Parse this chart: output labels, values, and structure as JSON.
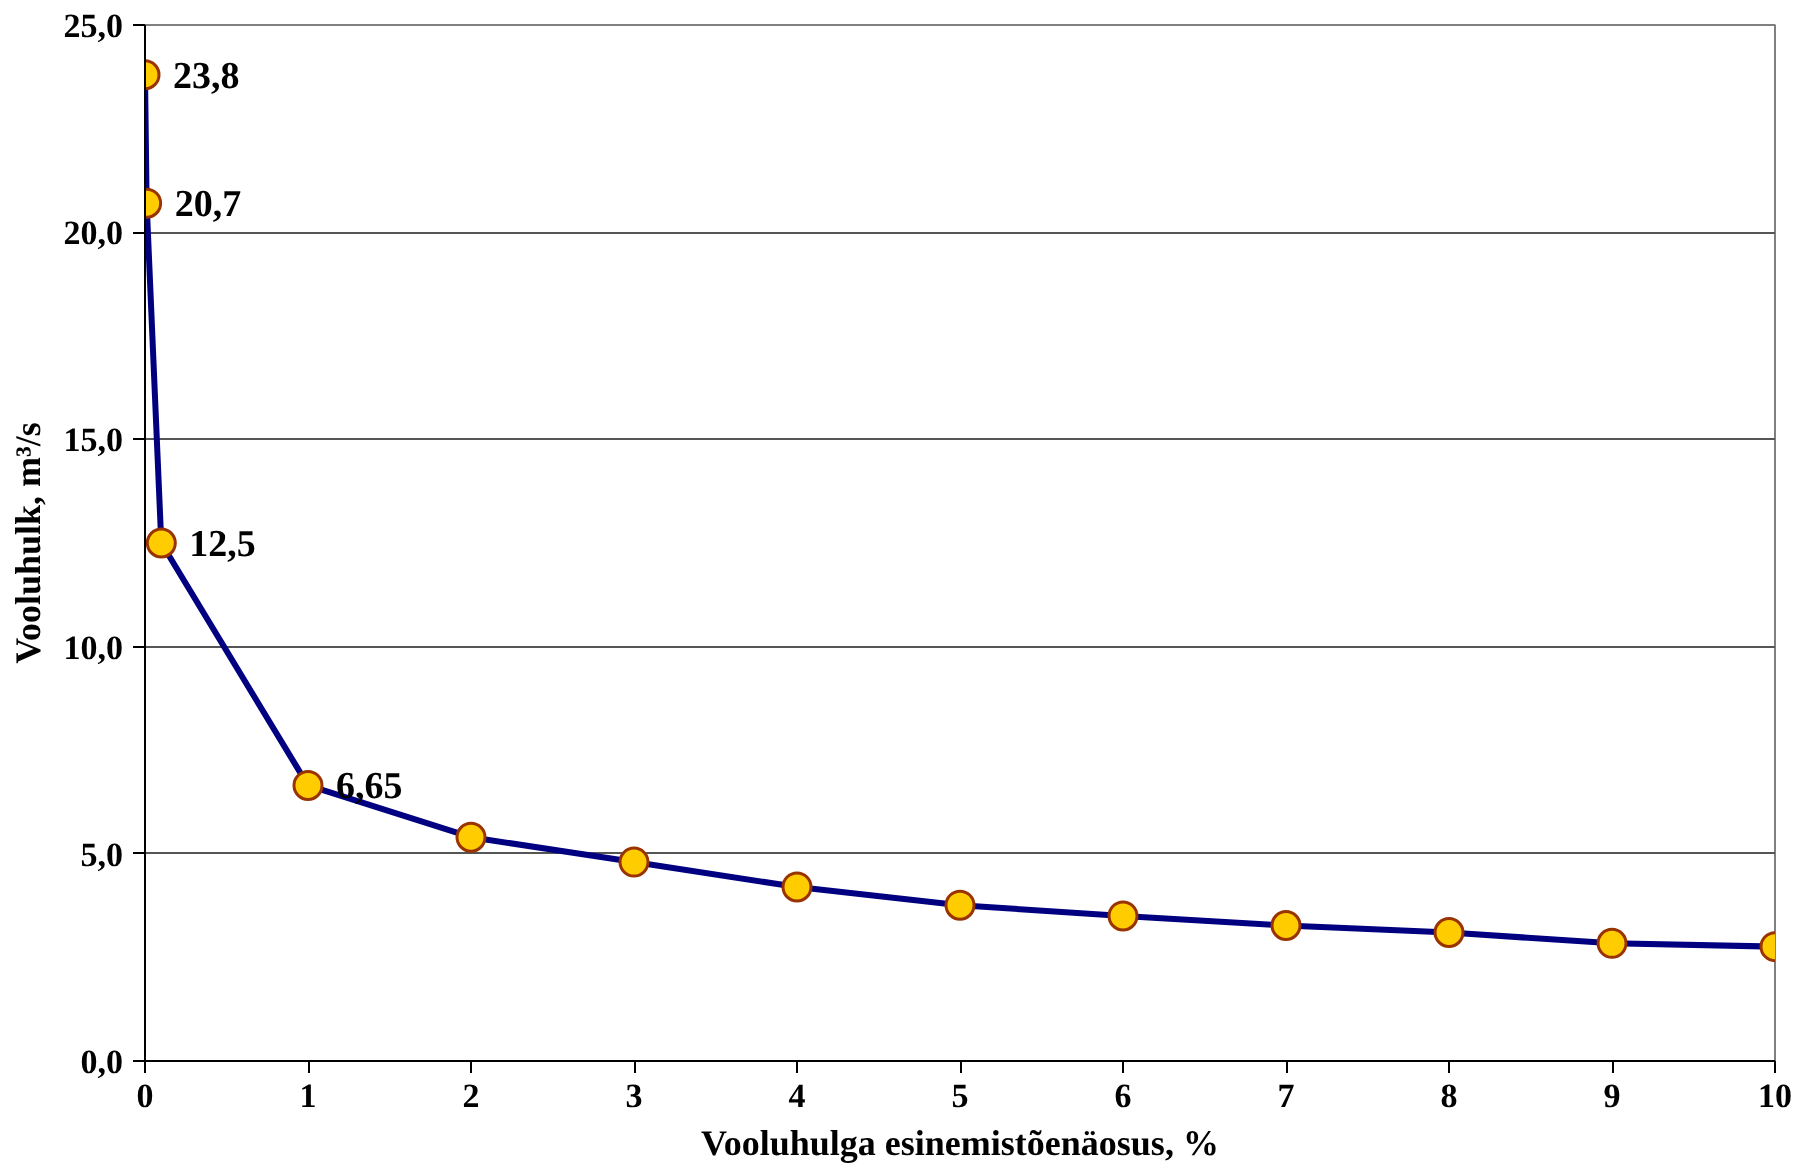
{
  "chart_data": {
    "type": "line",
    "xlabel": "Vooluhulga esinemistõenäosus, %",
    "ylabel": "Vooluhulk, m³/s",
    "x": [
      0,
      0.01,
      0.1,
      1,
      2,
      3,
      4,
      5,
      6,
      7,
      8,
      9,
      10
    ],
    "series": [
      {
        "color": "#000080",
        "values": [
          23.8,
          20.7,
          12.5,
          6.65,
          5.4,
          4.8,
          4.2,
          3.76,
          3.5,
          3.27,
          3.1,
          2.84,
          2.76
        ],
        "value_labels": [
          "23,8",
          "20,7",
          "12,5",
          "6,65",
          null,
          null,
          null,
          null,
          null,
          null,
          null,
          null,
          null
        ]
      }
    ],
    "marker": "circle",
    "line_style": "solid",
    "xlim": [
      0,
      10
    ],
    "xticks": [
      0,
      1,
      2,
      3,
      4,
      5,
      6,
      7,
      8,
      9,
      10
    ],
    "ylim": [
      0,
      25
    ],
    "yticks": [
      {
        "value": 0,
        "label": "0,0"
      },
      {
        "value": 5,
        "label": "5,0"
      },
      {
        "value": 10,
        "label": "10,0"
      },
      {
        "value": 15,
        "label": "15,0"
      },
      {
        "value": 20,
        "label": "20,0"
      },
      {
        "value": 25,
        "label": "25,0"
      }
    ],
    "grid": "y"
  }
}
